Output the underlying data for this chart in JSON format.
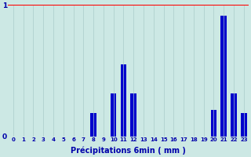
{
  "xlabel": "Précipitations 6min ( mm )",
  "background_color": "#cce8e4",
  "bar_color": "#0000cc",
  "grid_color": "#aaccca",
  "label_color": "#0000aa",
  "xlim": [
    -0.5,
    23.5
  ],
  "ylim": [
    0,
    1.0
  ],
  "yticks": [
    0,
    1
  ],
  "ytick_labels": [
    "0",
    "1"
  ],
  "categories": [
    0,
    1,
    2,
    3,
    4,
    5,
    6,
    7,
    8,
    9,
    10,
    11,
    12,
    13,
    14,
    15,
    16,
    17,
    18,
    19,
    20,
    21,
    22,
    23
  ],
  "values": [
    0,
    0,
    0,
    0,
    0,
    0,
    0,
    0,
    0.18,
    0,
    0.33,
    0.55,
    0.33,
    0,
    0,
    0,
    0,
    0,
    0,
    0,
    0.2,
    0.92,
    0.33,
    0.18
  ],
  "bar_width": 0.6
}
